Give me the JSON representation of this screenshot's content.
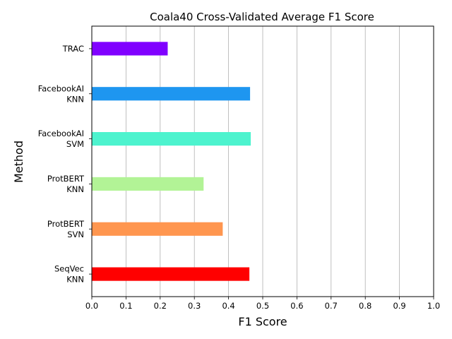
{
  "chart_data": {
    "type": "bar",
    "orientation": "horizontal",
    "title": "Coala40 Cross-Validated Average F1 Score",
    "xlabel": "F1 Score",
    "ylabel": "Method",
    "xlim": [
      0,
      1.0
    ],
    "xticks": [
      "0.0",
      "0.1",
      "0.2",
      "0.3",
      "0.4",
      "0.5",
      "0.6",
      "0.7",
      "0.8",
      "0.9",
      "1.0"
    ],
    "grid": "vertical",
    "categories": [
      [
        "TRAC"
      ],
      [
        "FacebookAI",
        "KNN"
      ],
      [
        "FacebookAI",
        "SVM"
      ],
      [
        "ProtBERT",
        "KNN"
      ],
      [
        "ProtBERT",
        "SVN"
      ],
      [
        "SeqVec",
        "KNN"
      ]
    ],
    "values": [
      0.222,
      0.463,
      0.465,
      0.327,
      0.383,
      0.461
    ],
    "colors": [
      "#8000ff",
      "#1e96f0",
      "#4df3ce",
      "#b2f396",
      "#ff964f",
      "#ff0000"
    ]
  }
}
